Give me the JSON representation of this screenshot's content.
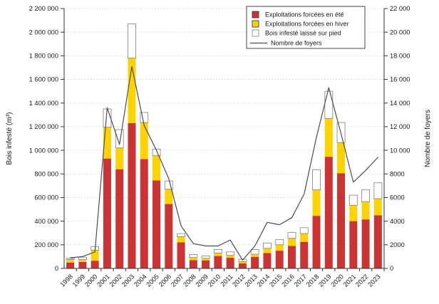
{
  "chart_data": {
    "type": "bar",
    "subtype": "stacked-bars-with-line",
    "title": "",
    "categories": [
      "1998",
      "1999",
      "2000",
      "2001",
      "2002",
      "2003",
      "2004",
      "2005",
      "2006",
      "2007",
      "2008",
      "2009",
      "2010",
      "2011",
      "2012",
      "2013",
      "2014",
      "2015",
      "2016",
      "2017",
      "2018",
      "2019",
      "2020",
      "2021",
      "2022",
      "2023"
    ],
    "series": [
      {
        "name": "Exploitations forcées en été",
        "type": "bar",
        "axis": "left",
        "color": "#cc3333",
        "border": "#9e2424",
        "values": [
          50000,
          55000,
          65000,
          930000,
          840000,
          1230000,
          925000,
          745000,
          545000,
          220000,
          70000,
          68000,
          105000,
          90000,
          42000,
          98000,
          130000,
          150000,
          190000,
          225000,
          445000,
          945000,
          805000,
          400000,
          415000,
          450000
        ]
      },
      {
        "name": "Exploitations forcées en hiver",
        "type": "bar",
        "axis": "left",
        "color": "#fdd303",
        "border": "#c9a700",
        "values": [
          25000,
          20000,
          90000,
          265000,
          180000,
          550000,
          310000,
          210000,
          125000,
          50000,
          22000,
          17000,
          25000,
          20000,
          16000,
          22000,
          40000,
          50000,
          65000,
          70000,
          220000,
          325000,
          260000,
          135000,
          150000,
          140000
        ]
      },
      {
        "name": "Bois infesté laissé sur pied",
        "type": "bar",
        "axis": "left",
        "color": "#ffffff",
        "border": "#8c8c8c",
        "values": [
          10000,
          20000,
          30000,
          155000,
          155000,
          290000,
          85000,
          55000,
          70000,
          25000,
          26000,
          20000,
          30000,
          30000,
          20000,
          40000,
          45000,
          45000,
          50000,
          50000,
          170000,
          230000,
          170000,
          85000,
          100000,
          135000
        ]
      },
      {
        "name": "Nombre de foyers",
        "type": "line",
        "axis": "right",
        "color": "#4d4d4d",
        "values": [
          900,
          1000,
          1400,
          13600,
          10500,
          17100,
          12100,
          10000,
          7600,
          3600,
          2100,
          1900,
          1900,
          2400,
          700,
          1900,
          3900,
          3700,
          4300,
          6300,
          11100,
          15300,
          11400,
          7300,
          8300,
          9400
        ]
      }
    ],
    "left_axis": {
      "label": "Bois infesté (m³)",
      "min": 0,
      "max": 2200000,
      "step": 200000
    },
    "right_axis": {
      "label": "Nombre de foyers",
      "min": 0,
      "max": 22000,
      "step": 2000
    },
    "grid": true,
    "legend_position": "top-inside"
  }
}
